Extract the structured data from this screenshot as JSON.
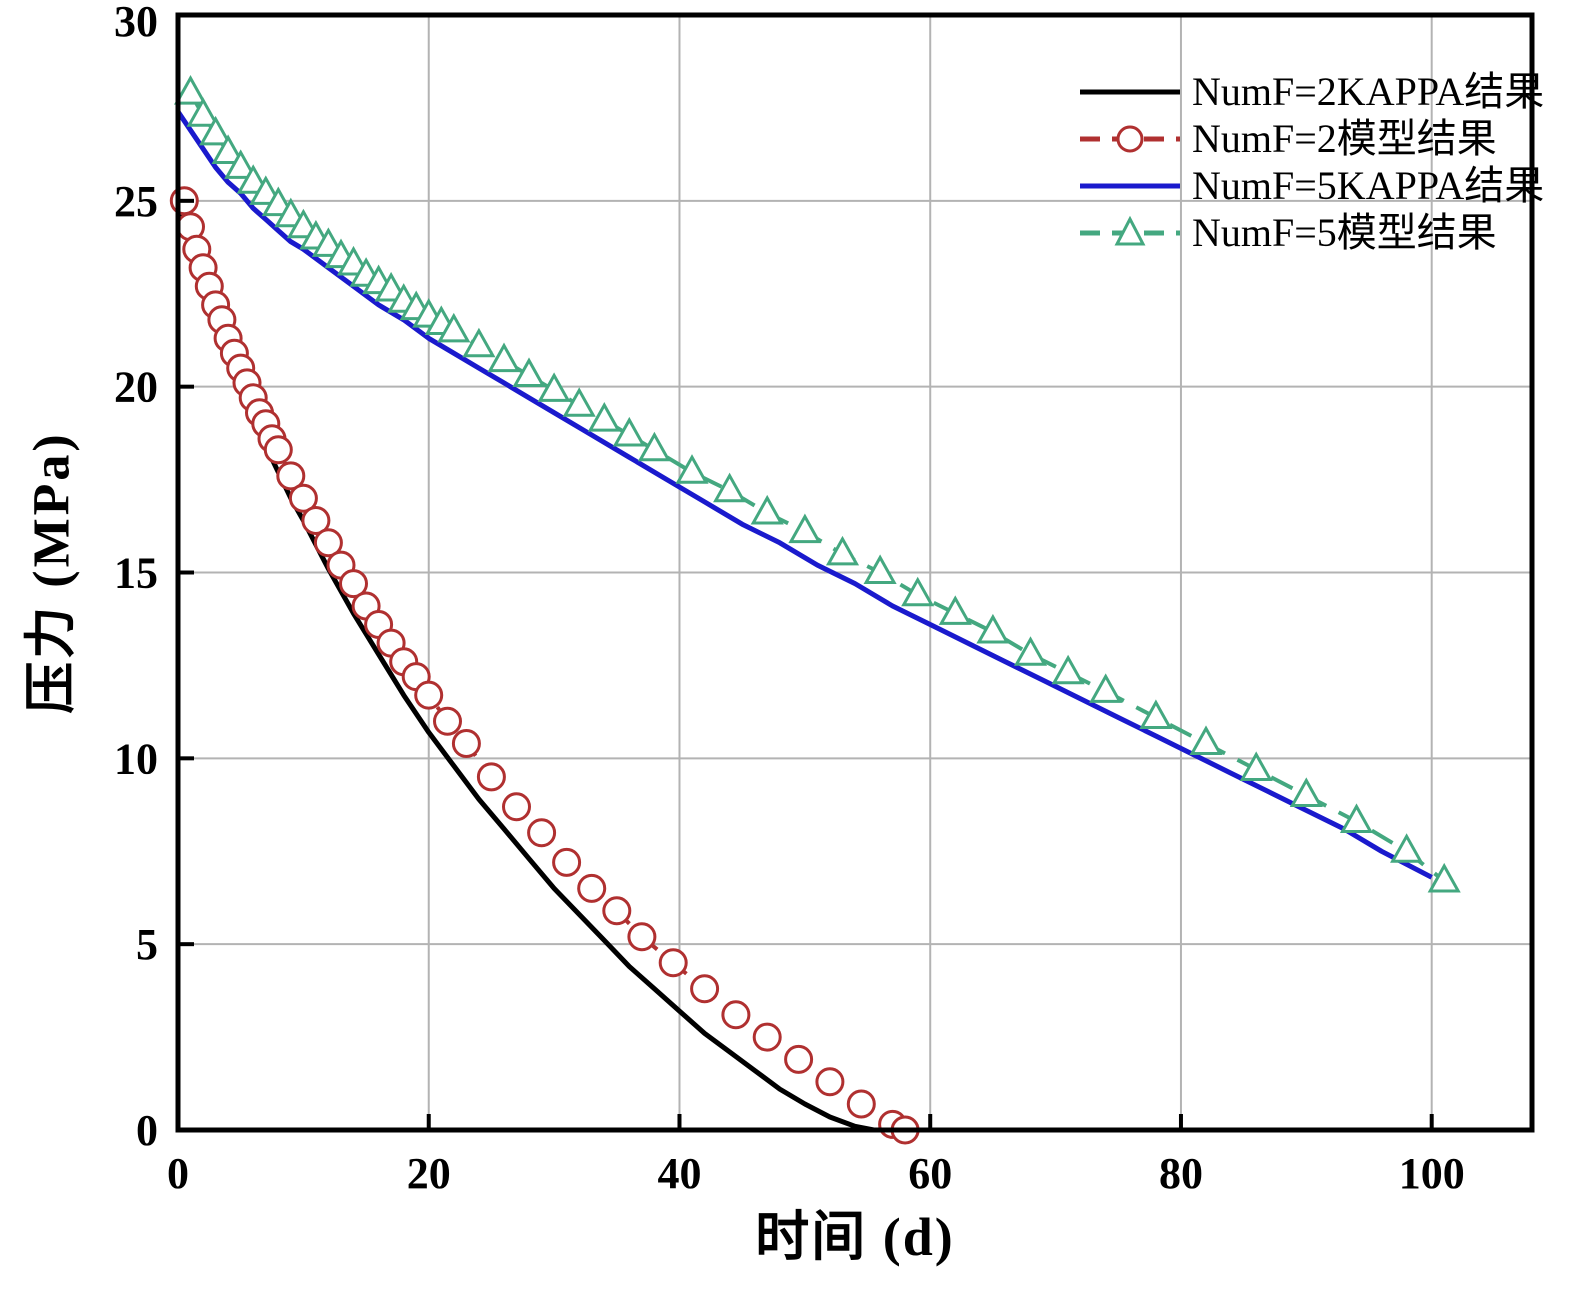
{
  "figure": {
    "background": "#ffffff",
    "frame_color": "#000000",
    "grid_color": "#b3b3b3"
  },
  "chart_data": {
    "type": "line",
    "title": "",
    "xlabel": "时间 (d)",
    "ylabel": "压力 (MPa)",
    "xlim": [
      0,
      108
    ],
    "ylim": [
      0,
      30
    ],
    "x_ticks": [
      0,
      20,
      40,
      60,
      80,
      100
    ],
    "y_ticks": [
      0,
      5,
      10,
      15,
      20,
      25,
      30
    ],
    "grid": true,
    "legend_position": "top-right",
    "series": [
      {
        "id": "numf2-kappa",
        "name": "NumF=2KAPPA结果",
        "color": "#000000",
        "style": "solid",
        "marker": "none",
        "width": 5,
        "points": [
          [
            0,
            25.0
          ],
          [
            1,
            23.9
          ],
          [
            2,
            22.8
          ],
          [
            3,
            21.8
          ],
          [
            4,
            20.9
          ],
          [
            5,
            20.0
          ],
          [
            6,
            19.2
          ],
          [
            7,
            18.4
          ],
          [
            8,
            17.7
          ],
          [
            9,
            17.0
          ],
          [
            10,
            16.4
          ],
          [
            12,
            15.1
          ],
          [
            14,
            13.9
          ],
          [
            16,
            12.8
          ],
          [
            18,
            11.7
          ],
          [
            20,
            10.7
          ],
          [
            22,
            9.8
          ],
          [
            24,
            8.9
          ],
          [
            26,
            8.1
          ],
          [
            28,
            7.3
          ],
          [
            30,
            6.5
          ],
          [
            32,
            5.8
          ],
          [
            34,
            5.1
          ],
          [
            36,
            4.4
          ],
          [
            38,
            3.8
          ],
          [
            40,
            3.2
          ],
          [
            42,
            2.6
          ],
          [
            44,
            2.1
          ],
          [
            46,
            1.6
          ],
          [
            48,
            1.1
          ],
          [
            50,
            0.7
          ],
          [
            52,
            0.35
          ],
          [
            54,
            0.1
          ],
          [
            55.5,
            0
          ]
        ]
      },
      {
        "id": "numf2-model",
        "name": "NumF=2模型结果",
        "color": "#b03030",
        "style": "dashed",
        "marker": "circle",
        "width": 4,
        "points": [
          [
            0.5,
            25.0
          ],
          [
            1,
            24.3
          ],
          [
            1.5,
            23.7
          ],
          [
            2,
            23.2
          ],
          [
            2.5,
            22.7
          ],
          [
            3,
            22.2
          ],
          [
            3.5,
            21.8
          ],
          [
            4,
            21.3
          ],
          [
            4.5,
            20.9
          ],
          [
            5,
            20.5
          ],
          [
            5.5,
            20.1
          ],
          [
            6,
            19.7
          ],
          [
            6.5,
            19.3
          ],
          [
            7,
            19.0
          ],
          [
            7.5,
            18.6
          ],
          [
            8,
            18.3
          ],
          [
            9,
            17.6
          ],
          [
            10,
            17.0
          ],
          [
            11,
            16.4
          ],
          [
            12,
            15.8
          ],
          [
            13,
            15.2
          ],
          [
            14,
            14.7
          ],
          [
            15,
            14.1
          ],
          [
            16,
            13.6
          ],
          [
            17,
            13.1
          ],
          [
            18,
            12.6
          ],
          [
            19,
            12.2
          ],
          [
            20,
            11.7
          ],
          [
            21.5,
            11.0
          ],
          [
            23,
            10.4
          ],
          [
            25,
            9.5
          ],
          [
            27,
            8.7
          ],
          [
            29,
            8.0
          ],
          [
            31,
            7.2
          ],
          [
            33,
            6.5
          ],
          [
            35,
            5.9
          ],
          [
            37,
            5.2
          ],
          [
            39.5,
            4.5
          ],
          [
            42,
            3.8
          ],
          [
            44.5,
            3.1
          ],
          [
            47,
            2.5
          ],
          [
            49.5,
            1.9
          ],
          [
            52,
            1.3
          ],
          [
            54.5,
            0.7
          ],
          [
            57,
            0.15
          ],
          [
            58,
            0
          ]
        ]
      },
      {
        "id": "numf5-kappa",
        "name": "NumF=5KAPPA结果",
        "color": "#1a1acd",
        "style": "solid",
        "marker": "none",
        "width": 5,
        "points": [
          [
            0,
            27.4
          ],
          [
            1,
            26.9
          ],
          [
            2,
            26.4
          ],
          [
            3,
            25.9
          ],
          [
            4,
            25.5
          ],
          [
            5,
            25.2
          ],
          [
            6,
            24.8
          ],
          [
            7,
            24.5
          ],
          [
            8,
            24.2
          ],
          [
            9,
            23.9
          ],
          [
            10,
            23.7
          ],
          [
            12,
            23.2
          ],
          [
            14,
            22.7
          ],
          [
            16,
            22.2
          ],
          [
            18,
            21.8
          ],
          [
            20,
            21.3
          ],
          [
            22,
            20.9
          ],
          [
            24,
            20.5
          ],
          [
            26,
            20.1
          ],
          [
            28,
            19.7
          ],
          [
            30,
            19.3
          ],
          [
            33,
            18.7
          ],
          [
            36,
            18.1
          ],
          [
            39,
            17.5
          ],
          [
            42,
            16.9
          ],
          [
            45,
            16.3
          ],
          [
            48,
            15.8
          ],
          [
            51,
            15.2
          ],
          [
            54,
            14.7
          ],
          [
            57,
            14.1
          ],
          [
            60,
            13.6
          ],
          [
            63,
            13.1
          ],
          [
            66,
            12.6
          ],
          [
            69,
            12.1
          ],
          [
            72,
            11.6
          ],
          [
            75,
            11.1
          ],
          [
            78,
            10.6
          ],
          [
            81,
            10.1
          ],
          [
            84,
            9.6
          ],
          [
            87,
            9.1
          ],
          [
            90,
            8.6
          ],
          [
            93,
            8.1
          ],
          [
            96,
            7.5
          ],
          [
            100,
            6.8
          ]
        ]
      },
      {
        "id": "numf5-model",
        "name": "NumF=5模型结果",
        "color": "#44a880",
        "style": "dashed",
        "marker": "triangle",
        "width": 4,
        "points": [
          [
            1,
            27.9
          ],
          [
            2,
            27.3
          ],
          [
            3,
            26.8
          ],
          [
            4,
            26.3
          ],
          [
            5,
            25.9
          ],
          [
            6,
            25.5
          ],
          [
            7,
            25.2
          ],
          [
            8,
            24.9
          ],
          [
            9,
            24.6
          ],
          [
            10,
            24.3
          ],
          [
            11,
            24.0
          ],
          [
            12,
            23.8
          ],
          [
            13,
            23.5
          ],
          [
            14,
            23.3
          ],
          [
            15,
            23.0
          ],
          [
            16,
            22.8
          ],
          [
            17,
            22.6
          ],
          [
            18,
            22.3
          ],
          [
            19,
            22.1
          ],
          [
            20,
            21.9
          ],
          [
            21,
            21.7
          ],
          [
            22,
            21.5
          ],
          [
            24,
            21.1
          ],
          [
            26,
            20.7
          ],
          [
            28,
            20.3
          ],
          [
            30,
            19.9
          ],
          [
            32,
            19.5
          ],
          [
            34,
            19.1
          ],
          [
            36,
            18.7
          ],
          [
            38,
            18.3
          ],
          [
            41,
            17.7
          ],
          [
            44,
            17.2
          ],
          [
            47,
            16.6
          ],
          [
            50,
            16.1
          ],
          [
            53,
            15.5
          ],
          [
            56,
            15.0
          ],
          [
            59,
            14.4
          ],
          [
            62,
            13.9
          ],
          [
            65,
            13.4
          ],
          [
            68,
            12.8
          ],
          [
            71,
            12.3
          ],
          [
            74,
            11.8
          ],
          [
            78,
            11.1
          ],
          [
            82,
            10.4
          ],
          [
            86,
            9.7
          ],
          [
            90,
            9.0
          ],
          [
            94,
            8.3
          ],
          [
            98,
            7.5
          ],
          [
            101,
            6.7
          ]
        ]
      }
    ]
  }
}
